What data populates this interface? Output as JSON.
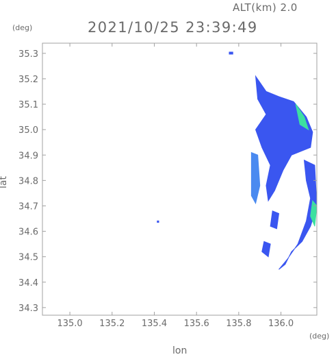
{
  "chart_data": {
    "type": "heatmap",
    "title": "2021/10/25 23:39:49",
    "altitude_label": "ALT(km) 2.0",
    "xlabel": "lon",
    "ylabel": "lat",
    "x_unit": "(deg)",
    "y_unit": "(deg)",
    "xlim": [
      134.87,
      136.17
    ],
    "ylim": [
      34.27,
      35.34
    ],
    "x_ticks": [
      "135.0",
      "135.2",
      "135.4",
      "135.6",
      "135.8",
      "136.0"
    ],
    "y_ticks": [
      "34.3",
      "34.4",
      "34.5",
      "34.6",
      "34.7",
      "34.8",
      "34.9",
      "35.0",
      "35.1",
      "35.2",
      "35.3"
    ],
    "grid": false,
    "colors": {
      "low": "#3a56f0",
      "mid": "#4a8af0",
      "high": "#3de0a0",
      "axis": "#a0a0a0"
    },
    "echoes": [
      {
        "name": "isolated-echo-north",
        "level": "low",
        "points": [
          [
            135.755,
            35.305
          ],
          [
            135.772,
            35.305
          ],
          [
            135.772,
            35.297
          ],
          [
            135.755,
            35.297
          ]
        ]
      },
      {
        "name": "isolated-echo-west",
        "level": "low",
        "points": [
          [
            135.414,
            34.641
          ],
          [
            135.421,
            34.641
          ],
          [
            135.421,
            34.635
          ],
          [
            135.414,
            34.635
          ]
        ]
      },
      {
        "name": "main-band-north",
        "level": "low",
        "points": [
          [
            135.88,
            35.21
          ],
          [
            135.93,
            35.15
          ],
          [
            135.99,
            35.13
          ],
          [
            136.06,
            35.11
          ],
          [
            136.12,
            35.05
          ],
          [
            136.15,
            34.99
          ],
          [
            136.14,
            34.93
          ],
          [
            136.05,
            34.9
          ],
          [
            136.01,
            34.84
          ],
          [
            135.97,
            34.76
          ],
          [
            135.94,
            34.72
          ],
          [
            135.93,
            34.78
          ],
          [
            135.95,
            34.86
          ],
          [
            135.91,
            34.93
          ],
          [
            135.88,
            35.0
          ],
          [
            135.93,
            35.06
          ],
          [
            135.89,
            35.12
          ]
        ]
      },
      {
        "name": "main-band-core",
        "level": "high",
        "points": [
          [
            136.07,
            35.1
          ],
          [
            136.11,
            35.05
          ],
          [
            136.13,
            35.0
          ],
          [
            136.09,
            35.02
          ]
        ]
      },
      {
        "name": "east-band",
        "level": "low",
        "points": [
          [
            136.11,
            34.88
          ],
          [
            136.16,
            34.86
          ],
          [
            136.17,
            34.7
          ],
          [
            136.14,
            34.62
          ],
          [
            136.1,
            34.56
          ],
          [
            136.05,
            34.52
          ],
          [
            136.02,
            34.47
          ],
          [
            135.99,
            34.45
          ],
          [
            136.03,
            34.49
          ],
          [
            136.08,
            34.55
          ],
          [
            136.12,
            34.64
          ],
          [
            136.14,
            34.73
          ],
          [
            136.12,
            34.8
          ]
        ]
      },
      {
        "name": "east-band-core",
        "level": "high",
        "points": [
          [
            136.15,
            34.72
          ],
          [
            136.17,
            34.7
          ],
          [
            136.16,
            34.62
          ],
          [
            136.14,
            34.66
          ]
        ]
      },
      {
        "name": "small-cell-a",
        "level": "low",
        "points": [
          [
            135.96,
            34.68
          ],
          [
            135.99,
            34.67
          ],
          [
            135.98,
            34.61
          ],
          [
            135.95,
            34.62
          ]
        ]
      },
      {
        "name": "small-cell-b",
        "level": "low",
        "points": [
          [
            135.92,
            34.56
          ],
          [
            135.95,
            34.55
          ],
          [
            135.94,
            34.5
          ],
          [
            135.91,
            34.52
          ]
        ]
      },
      {
        "name": "west-fragment",
        "level": "mid",
        "points": [
          [
            135.86,
            34.91
          ],
          [
            135.89,
            34.9
          ],
          [
            135.9,
            34.78
          ],
          [
            135.88,
            34.71
          ],
          [
            135.86,
            34.74
          ]
        ]
      }
    ]
  }
}
